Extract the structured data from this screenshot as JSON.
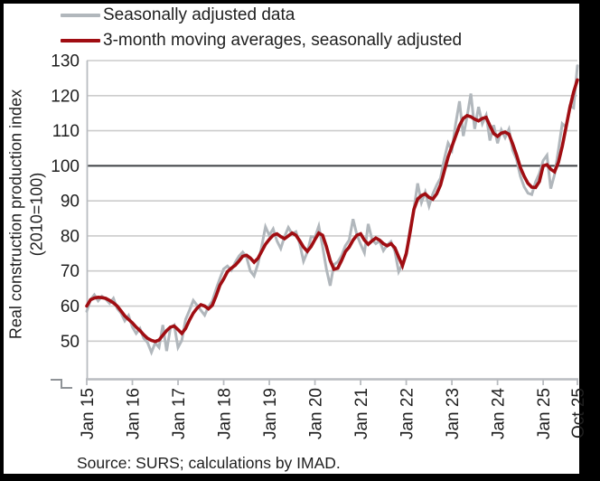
{
  "legend": {
    "entries": [
      {
        "label": "Seasonally adjusted data",
        "color": "#b1b7bc"
      },
      {
        "label": "3-month moving averages, seasonally adjusted",
        "color": "#a00d12"
      }
    ]
  },
  "y_axis_title_line1": "Real construction production index",
  "y_axis_title_line2": "(2010=100)",
  "source_note": "Source: SURS; calculations by IMAD.",
  "chart_data": {
    "type": "line",
    "title": "",
    "xlabel": "",
    "ylabel": "Real construction production index (2010=100)",
    "x_unit": "month",
    "x_start": "Jan 2015",
    "x_end": "Oct 2025",
    "n_points": 130,
    "ylim": [
      50,
      130
    ],
    "y_ticks": [
      50,
      60,
      70,
      80,
      90,
      100,
      110,
      120,
      130
    ],
    "reference_line_y": 100,
    "axis_break_at_bottom": true,
    "grid": "horizontal",
    "legend_position": "top-left",
    "x_tick_labels": [
      "Jan 15",
      "Jan 16",
      "Jan 17",
      "Jan 18",
      "Jan 19",
      "Jan 20",
      "Jan 21",
      "Jan 22",
      "Jan 23",
      "Jan 24",
      "Jan 25",
      "Oct 25"
    ],
    "x_tick_month_index": [
      0,
      12,
      24,
      36,
      48,
      60,
      72,
      84,
      96,
      108,
      120,
      129
    ],
    "colors": {
      "background": "#000000",
      "plot_background": "#ffffff",
      "gridline": "#cccccc",
      "axis_line": "#b9bcc0",
      "reference_line": "#3e4044",
      "text": "#1f1f1f",
      "axis_break_glyph": "#8f9397"
    },
    "series": [
      {
        "name": "Seasonally adjusted data",
        "color": "#b1b7bc",
        "stroke_width": 3,
        "values": [
          58.5,
          61.8,
          63.2,
          61.5,
          62.8,
          62.0,
          60.8,
          62.2,
          59.3,
          58.0,
          55.8,
          57.3,
          54.0,
          52.2,
          53.6,
          50.8,
          49.6,
          46.8,
          49.5,
          48.2,
          54.6,
          47.2,
          53.8,
          54.6,
          48.2,
          50.2,
          56.2,
          58.8,
          61.6,
          60.2,
          58.8,
          57.4,
          59.8,
          61.4,
          64.8,
          67.8,
          70.6,
          71.4,
          70.2,
          72.4,
          74.2,
          75.4,
          74.0,
          70.0,
          68.6,
          72.0,
          77.0,
          82.6,
          80.2,
          82.0,
          78.6,
          76.4,
          79.8,
          82.4,
          80.6,
          81.2,
          77.8,
          72.8,
          75.4,
          79.8,
          79.6,
          82.8,
          77.0,
          70.6,
          65.8,
          71.8,
          72.6,
          74.4,
          77.2,
          78.8,
          84.8,
          80.4,
          77.6,
          75.2,
          83.4,
          79.0,
          77.8,
          78.6,
          75.8,
          77.4,
          78.4,
          75.6,
          69.8,
          72.0,
          74.5,
          82.0,
          87.5,
          95.0,
          89.5,
          92.5,
          88.5,
          92.0,
          94.5,
          96.5,
          102.0,
          106.5,
          104.5,
          112.0,
          118.4,
          108.5,
          114.0,
          120.6,
          110.5,
          116.8,
          112.0,
          114.4,
          107.2,
          111.6,
          106.4,
          110.2,
          108.0,
          110.4,
          104.4,
          101.8,
          97.0,
          94.0,
          92.2,
          91.8,
          95.4,
          97.8,
          101.5,
          103.0,
          93.5,
          97.5,
          104.5,
          112.0,
          111.0,
          117.0,
          116.5,
          128.5
        ]
      },
      {
        "name": "3-month moving averages, seasonally adjusted",
        "color": "#a00d12",
        "stroke_width": 3.6,
        "values": [
          60.0,
          61.8,
          62.3,
          62.5,
          62.4,
          62.2,
          61.6,
          60.9,
          60.0,
          58.6,
          57.2,
          56.2,
          55.2,
          54.0,
          53.0,
          51.8,
          50.8,
          50.2,
          49.9,
          50.3,
          51.7,
          53.0,
          54.0,
          54.3,
          53.3,
          52.2,
          53.6,
          56.0,
          58.0,
          59.4,
          60.4,
          60.0,
          59.2,
          60.2,
          62.9,
          65.9,
          67.7,
          69.8,
          70.8,
          71.6,
          72.8,
          74.2,
          74.5,
          73.7,
          72.5,
          73.6,
          75.6,
          77.6,
          79.0,
          80.2,
          80.6,
          79.8,
          79.2,
          80.0,
          80.8,
          80.2,
          78.6,
          76.8,
          75.6,
          77.0,
          79.0,
          80.8,
          80.2,
          77.0,
          73.0,
          70.5,
          70.8,
          73.0,
          75.5,
          76.8,
          78.8,
          80.2,
          80.6,
          78.8,
          77.6,
          78.6,
          79.4,
          78.8,
          77.8,
          77.2,
          77.8,
          76.6,
          74.0,
          71.5,
          75.0,
          81.0,
          87.5,
          90.5,
          91.5,
          92.0,
          91.0,
          90.5,
          92.0,
          94.5,
          98.5,
          102.5,
          105.5,
          108.5,
          111.5,
          113.5,
          114.3,
          114.0,
          113.3,
          112.8,
          113.5,
          113.8,
          111.4,
          109.2,
          108.4,
          109.3,
          109.6,
          109.0,
          106.2,
          103.0,
          99.5,
          97.0,
          95.0,
          93.9,
          93.8,
          95.5,
          100.0,
          100.3,
          99.0,
          98.3,
          101.0,
          105.5,
          111.0,
          116.5,
          121.0,
          124.5
        ]
      }
    ]
  }
}
